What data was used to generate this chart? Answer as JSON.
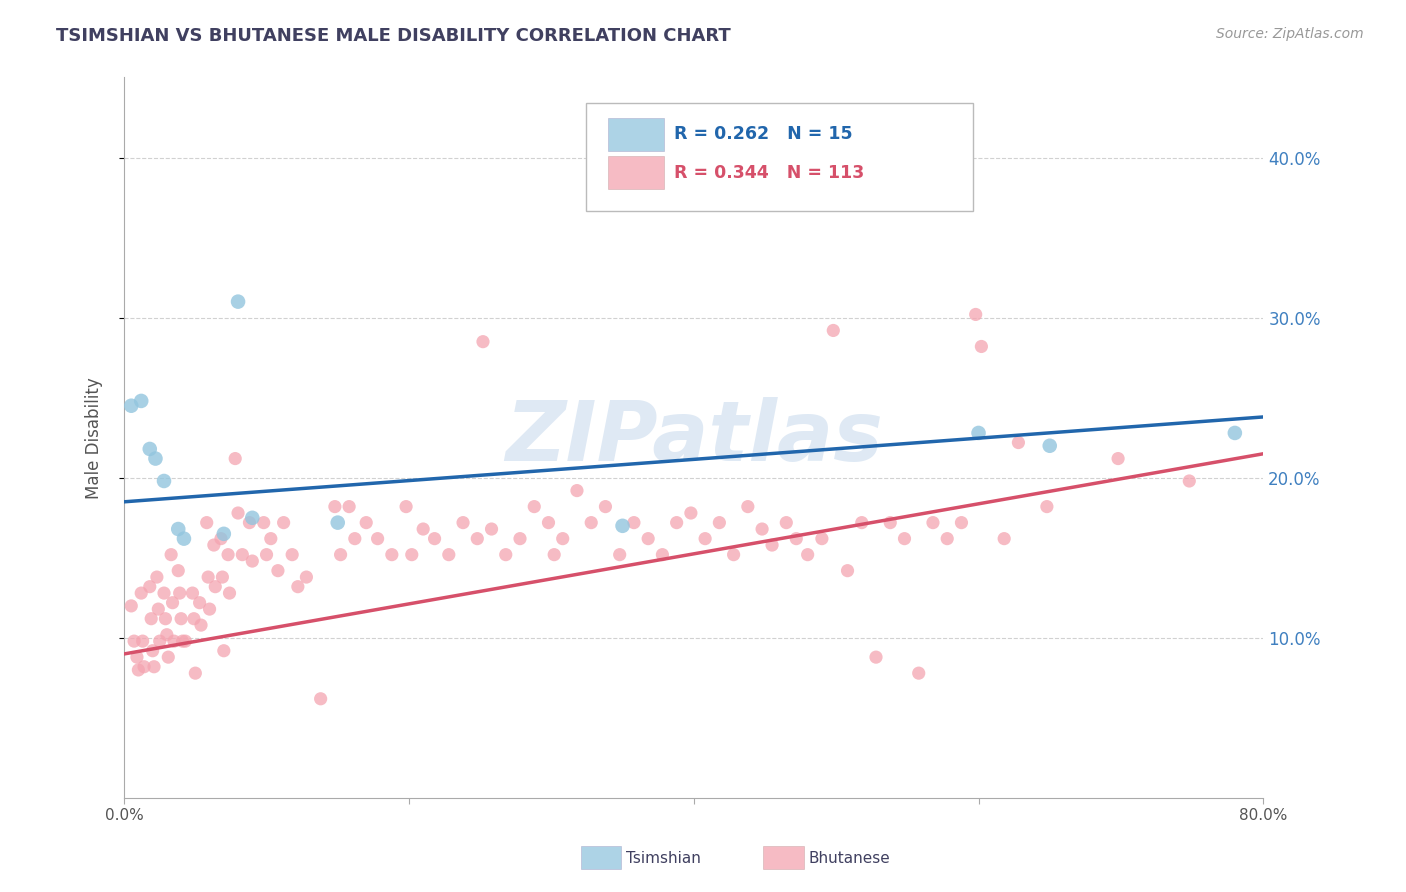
{
  "title": "TSIMSHIAN VS BHUTANESE MALE DISABILITY CORRELATION CHART",
  "source_text": "Source: ZipAtlas.com",
  "ylabel_label": "Male Disability",
  "xmin": 0.0,
  "xmax": 0.8,
  "ymin": 0.0,
  "ymax": 0.45,
  "x_ticks": [
    0.0,
    0.2,
    0.4,
    0.6,
    0.8
  ],
  "x_tick_labels": [
    "0.0%",
    "",
    "",
    "",
    "80.0%"
  ],
  "y_ticks": [
    0.1,
    0.2,
    0.3,
    0.4
  ],
  "y_tick_labels_right": [
    "10.0%",
    "20.0%",
    "30.0%",
    "40.0%"
  ],
  "legend_r1": "R = 0.262   N = 15",
  "legend_r2": "R = 0.344   N = 113",
  "tsimshian_color": "#92c5de",
  "bhutanese_color": "#f4a4b0",
  "trend_tsimshian_color": "#2166ac",
  "trend_bhutanese_color": "#d6506a",
  "watermark": "ZIPatlas",
  "tsimshian_R": 0.262,
  "tsimshian_N": 15,
  "bhutanese_R": 0.344,
  "bhutanese_N": 113,
  "tsimshian_trend_start": 0.185,
  "tsimshian_trend_end": 0.238,
  "bhutanese_trend_start": 0.09,
  "bhutanese_trend_end": 0.215,
  "tsimshian_points": [
    [
      0.005,
      0.245
    ],
    [
      0.012,
      0.248
    ],
    [
      0.018,
      0.218
    ],
    [
      0.022,
      0.212
    ],
    [
      0.028,
      0.198
    ],
    [
      0.038,
      0.168
    ],
    [
      0.042,
      0.162
    ],
    [
      0.07,
      0.165
    ],
    [
      0.08,
      0.31
    ],
    [
      0.09,
      0.175
    ],
    [
      0.15,
      0.172
    ],
    [
      0.35,
      0.17
    ],
    [
      0.6,
      0.228
    ],
    [
      0.65,
      0.22
    ],
    [
      0.78,
      0.228
    ]
  ],
  "bhutanese_points": [
    [
      0.005,
      0.12
    ],
    [
      0.007,
      0.098
    ],
    [
      0.009,
      0.088
    ],
    [
      0.01,
      0.08
    ],
    [
      0.012,
      0.128
    ],
    [
      0.013,
      0.098
    ],
    [
      0.014,
      0.082
    ],
    [
      0.018,
      0.132
    ],
    [
      0.019,
      0.112
    ],
    [
      0.02,
      0.092
    ],
    [
      0.021,
      0.082
    ],
    [
      0.023,
      0.138
    ],
    [
      0.024,
      0.118
    ],
    [
      0.025,
      0.098
    ],
    [
      0.028,
      0.128
    ],
    [
      0.029,
      0.112
    ],
    [
      0.03,
      0.102
    ],
    [
      0.031,
      0.088
    ],
    [
      0.033,
      0.152
    ],
    [
      0.034,
      0.122
    ],
    [
      0.035,
      0.098
    ],
    [
      0.038,
      0.142
    ],
    [
      0.039,
      0.128
    ],
    [
      0.04,
      0.112
    ],
    [
      0.041,
      0.098
    ],
    [
      0.043,
      0.098
    ],
    [
      0.048,
      0.128
    ],
    [
      0.049,
      0.112
    ],
    [
      0.05,
      0.078
    ],
    [
      0.053,
      0.122
    ],
    [
      0.054,
      0.108
    ],
    [
      0.058,
      0.172
    ],
    [
      0.059,
      0.138
    ],
    [
      0.06,
      0.118
    ],
    [
      0.063,
      0.158
    ],
    [
      0.064,
      0.132
    ],
    [
      0.068,
      0.162
    ],
    [
      0.069,
      0.138
    ],
    [
      0.07,
      0.092
    ],
    [
      0.073,
      0.152
    ],
    [
      0.074,
      0.128
    ],
    [
      0.078,
      0.212
    ],
    [
      0.08,
      0.178
    ],
    [
      0.083,
      0.152
    ],
    [
      0.088,
      0.172
    ],
    [
      0.09,
      0.148
    ],
    [
      0.098,
      0.172
    ],
    [
      0.1,
      0.152
    ],
    [
      0.103,
      0.162
    ],
    [
      0.108,
      0.142
    ],
    [
      0.112,
      0.172
    ],
    [
      0.118,
      0.152
    ],
    [
      0.122,
      0.132
    ],
    [
      0.128,
      0.138
    ],
    [
      0.138,
      0.062
    ],
    [
      0.148,
      0.182
    ],
    [
      0.152,
      0.152
    ],
    [
      0.158,
      0.182
    ],
    [
      0.162,
      0.162
    ],
    [
      0.17,
      0.172
    ],
    [
      0.178,
      0.162
    ],
    [
      0.188,
      0.152
    ],
    [
      0.198,
      0.182
    ],
    [
      0.202,
      0.152
    ],
    [
      0.21,
      0.168
    ],
    [
      0.218,
      0.162
    ],
    [
      0.228,
      0.152
    ],
    [
      0.238,
      0.172
    ],
    [
      0.248,
      0.162
    ],
    [
      0.252,
      0.285
    ],
    [
      0.258,
      0.168
    ],
    [
      0.268,
      0.152
    ],
    [
      0.278,
      0.162
    ],
    [
      0.288,
      0.182
    ],
    [
      0.298,
      0.172
    ],
    [
      0.302,
      0.152
    ],
    [
      0.308,
      0.162
    ],
    [
      0.318,
      0.192
    ],
    [
      0.328,
      0.172
    ],
    [
      0.338,
      0.182
    ],
    [
      0.348,
      0.152
    ],
    [
      0.358,
      0.172
    ],
    [
      0.368,
      0.162
    ],
    [
      0.378,
      0.152
    ],
    [
      0.388,
      0.172
    ],
    [
      0.398,
      0.178
    ],
    [
      0.408,
      0.162
    ],
    [
      0.418,
      0.172
    ],
    [
      0.428,
      0.152
    ],
    [
      0.438,
      0.182
    ],
    [
      0.448,
      0.168
    ],
    [
      0.455,
      0.158
    ],
    [
      0.465,
      0.172
    ],
    [
      0.472,
      0.162
    ],
    [
      0.48,
      0.152
    ],
    [
      0.49,
      0.162
    ],
    [
      0.498,
      0.292
    ],
    [
      0.508,
      0.142
    ],
    [
      0.518,
      0.172
    ],
    [
      0.528,
      0.088
    ],
    [
      0.538,
      0.172
    ],
    [
      0.548,
      0.162
    ],
    [
      0.558,
      0.078
    ],
    [
      0.568,
      0.172
    ],
    [
      0.578,
      0.162
    ],
    [
      0.588,
      0.172
    ],
    [
      0.598,
      0.302
    ],
    [
      0.602,
      0.282
    ],
    [
      0.618,
      0.162
    ],
    [
      0.628,
      0.222
    ],
    [
      0.648,
      0.182
    ],
    [
      0.698,
      0.212
    ],
    [
      0.748,
      0.198
    ]
  ],
  "background_color": "#ffffff",
  "grid_color": "#cccccc",
  "title_color": "#404060",
  "axis_label_color": "#555555",
  "tick_color_right": "#4080c0",
  "tick_color_bottom": "#555555"
}
